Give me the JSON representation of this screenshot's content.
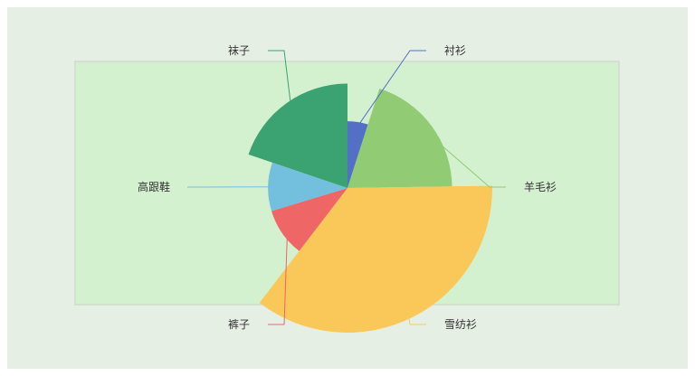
{
  "colors": {
    "page_background": "#ffffff",
    "chart_background": "#e6efe4",
    "grid_background": "#d3f1cf",
    "grid_border": "#cfdccd"
  },
  "chart_data": {
    "type": "pie",
    "variant": "rose",
    "rose_type": "radius",
    "start_angle_deg": 90,
    "clockwise": true,
    "title": "",
    "legend": "none",
    "categories": [
      "衬衫",
      "羊毛衫",
      "雪纺衫",
      "裤子",
      "高跟鞋",
      "袜子"
    ],
    "values": [
      5,
      20,
      36,
      10,
      10,
      20
    ],
    "colors": [
      "#5470c6",
      "#91cc75",
      "#fac858",
      "#ee6666",
      "#73c0de",
      "#3ba272"
    ],
    "series": [
      {
        "values": [
          5,
          20,
          36,
          10,
          10,
          20
        ]
      }
    ]
  }
}
